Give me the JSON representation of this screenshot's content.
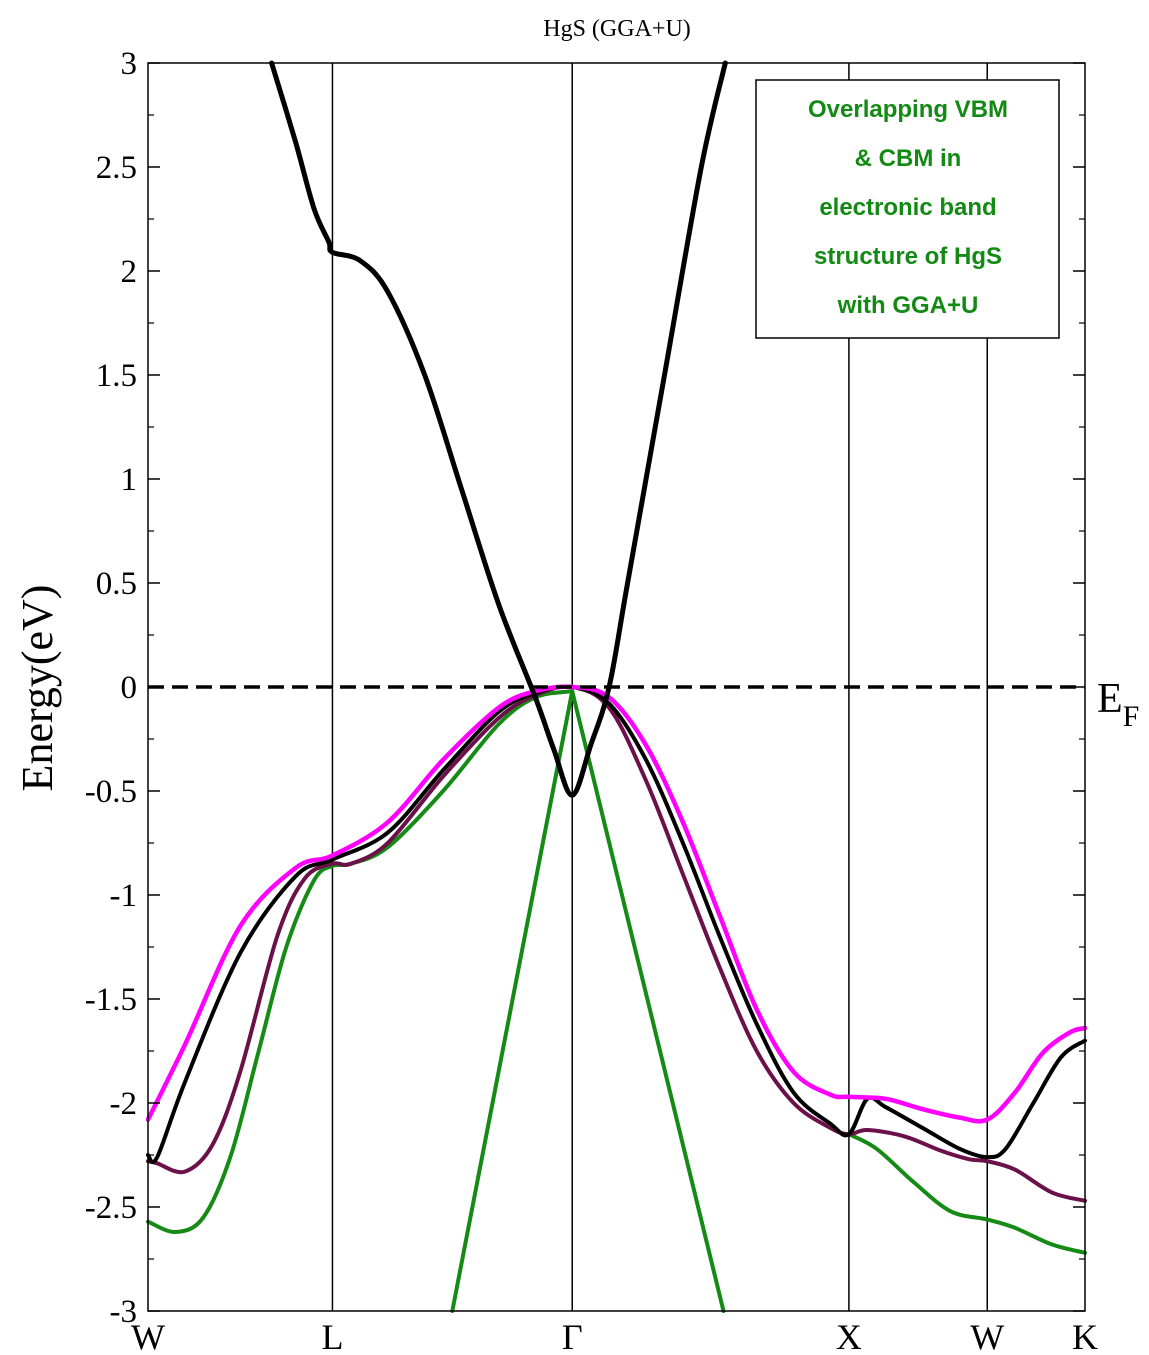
{
  "chart_data": {
    "type": "line",
    "title": "HgS (GGA+U)",
    "xlabel": "",
    "ylabel": "Energy(eV)",
    "ylim": [
      -3,
      3
    ],
    "yticks": [
      "3",
      "2.5",
      "2",
      "1.5",
      "1",
      "0.5",
      "0",
      "-0.5",
      "-1",
      "-1.5",
      "-2",
      "-2.5",
      "-3"
    ],
    "ytick_values": [
      3,
      2.5,
      2,
      1.5,
      1,
      0.5,
      0,
      -0.5,
      -1,
      -1.5,
      -2,
      -2.5,
      -3
    ],
    "kpoints": [
      {
        "label": "W",
        "pos": 0.0
      },
      {
        "label": "L",
        "pos": 1.0
      },
      {
        "label": "Γ",
        "pos": 2.3
      },
      {
        "label": "X",
        "pos": 3.8
      },
      {
        "label": "W",
        "pos": 4.55
      },
      {
        "label": "K",
        "pos": 5.08
      }
    ],
    "fermi_level": {
      "value": 0,
      "label": "E",
      "sub": "F",
      "style": "dashed"
    },
    "annotation": [
      "Overlapping VBM",
      "& CBM in",
      "electronic band",
      "structure of HgS",
      "with GGA+U"
    ],
    "grid": false,
    "series": [
      {
        "color": "#000000",
        "width": 5,
        "points": [
          [
            0.67,
            3.0
          ],
          [
            0.8,
            2.62
          ],
          [
            0.9,
            2.3
          ],
          [
            0.98,
            2.14
          ],
          [
            1.0,
            2.09
          ],
          [
            1.15,
            2.05
          ],
          [
            1.3,
            1.9
          ],
          [
            1.5,
            1.5
          ],
          [
            1.7,
            0.95
          ],
          [
            1.9,
            0.4
          ],
          [
            2.1,
            -0.05
          ],
          [
            2.2,
            -0.3
          ],
          [
            2.3,
            -0.52
          ],
          [
            2.4,
            -0.28
          ],
          [
            2.5,
            0.0
          ],
          [
            2.6,
            0.5
          ],
          [
            2.8,
            1.5
          ],
          [
            3.0,
            2.5
          ],
          [
            3.13,
            3.0
          ]
        ]
      },
      {
        "color": "#ff00ff",
        "width": 4.5,
        "points": [
          [
            0.0,
            -2.08
          ],
          [
            0.2,
            -1.72
          ],
          [
            0.5,
            -1.15
          ],
          [
            0.8,
            -0.87
          ],
          [
            1.0,
            -0.81
          ],
          [
            1.3,
            -0.65
          ],
          [
            1.6,
            -0.35
          ],
          [
            1.9,
            -0.1
          ],
          [
            2.1,
            -0.02
          ],
          [
            2.3,
            0.0
          ],
          [
            2.5,
            -0.05
          ],
          [
            2.7,
            -0.28
          ],
          [
            2.9,
            -0.65
          ],
          [
            3.1,
            -1.1
          ],
          [
            3.3,
            -1.55
          ],
          [
            3.5,
            -1.85
          ],
          [
            3.7,
            -1.96
          ],
          [
            3.8,
            -1.97
          ],
          [
            4.0,
            -1.98
          ],
          [
            4.2,
            -2.03
          ],
          [
            4.4,
            -2.07
          ],
          [
            4.55,
            -2.08
          ],
          [
            4.7,
            -1.95
          ],
          [
            4.85,
            -1.76
          ],
          [
            5.0,
            -1.66
          ],
          [
            5.08,
            -1.64
          ]
        ]
      },
      {
        "color": "#000000",
        "width": 4,
        "points": [
          [
            0.0,
            -2.25
          ],
          [
            0.05,
            -2.26
          ],
          [
            0.2,
            -1.9
          ],
          [
            0.5,
            -1.28
          ],
          [
            0.8,
            -0.91
          ],
          [
            1.0,
            -0.83
          ],
          [
            1.3,
            -0.7
          ],
          [
            1.6,
            -0.4
          ],
          [
            1.9,
            -0.12
          ],
          [
            2.1,
            -0.03
          ],
          [
            2.3,
            0.0
          ],
          [
            2.5,
            -0.08
          ],
          [
            2.7,
            -0.35
          ],
          [
            2.9,
            -0.75
          ],
          [
            3.1,
            -1.2
          ],
          [
            3.3,
            -1.62
          ],
          [
            3.5,
            -1.95
          ],
          [
            3.7,
            -2.1
          ],
          [
            3.8,
            -2.15
          ],
          [
            3.9,
            -1.98
          ],
          [
            4.0,
            -2.02
          ],
          [
            4.2,
            -2.12
          ],
          [
            4.4,
            -2.22
          ],
          [
            4.55,
            -2.26
          ],
          [
            4.65,
            -2.22
          ],
          [
            4.8,
            -2.0
          ],
          [
            4.95,
            -1.78
          ],
          [
            5.08,
            -1.7
          ]
        ]
      },
      {
        "color": "#6b1048",
        "width": 4,
        "points": [
          [
            0.0,
            -2.28
          ],
          [
            0.05,
            -2.29
          ],
          [
            0.2,
            -2.33
          ],
          [
            0.35,
            -2.2
          ],
          [
            0.5,
            -1.85
          ],
          [
            0.7,
            -1.2
          ],
          [
            0.85,
            -0.92
          ],
          [
            1.0,
            -0.85
          ],
          [
            1.1,
            -0.85
          ],
          [
            1.3,
            -0.75
          ],
          [
            1.6,
            -0.43
          ],
          [
            1.9,
            -0.15
          ],
          [
            2.1,
            -0.04
          ],
          [
            2.3,
            0.0
          ],
          [
            2.5,
            -0.1
          ],
          [
            2.7,
            -0.45
          ],
          [
            2.9,
            -0.9
          ],
          [
            3.1,
            -1.35
          ],
          [
            3.3,
            -1.75
          ],
          [
            3.5,
            -2.0
          ],
          [
            3.7,
            -2.12
          ],
          [
            3.8,
            -2.15
          ],
          [
            3.9,
            -2.13
          ],
          [
            4.1,
            -2.16
          ],
          [
            4.3,
            -2.23
          ],
          [
            4.45,
            -2.27
          ],
          [
            4.55,
            -2.28
          ],
          [
            4.7,
            -2.32
          ],
          [
            4.9,
            -2.43
          ],
          [
            5.08,
            -2.47
          ]
        ]
      },
      {
        "color": "#158a15",
        "width": 4,
        "points": [
          [
            0.0,
            -2.57
          ],
          [
            0.15,
            -2.62
          ],
          [
            0.3,
            -2.55
          ],
          [
            0.45,
            -2.25
          ],
          [
            0.6,
            -1.75
          ],
          [
            0.75,
            -1.25
          ],
          [
            0.9,
            -0.93
          ],
          [
            1.0,
            -0.86
          ],
          [
            1.1,
            -0.85
          ],
          [
            1.3,
            -0.77
          ],
          [
            1.6,
            -0.5
          ],
          [
            1.9,
            -0.18
          ],
          [
            2.1,
            -0.05
          ],
          [
            2.3,
            -0.02
          ]
        ]
      },
      {
        "color": "#158a15",
        "width": 4,
        "points": [
          [
            3.8,
            -2.15
          ],
          [
            3.95,
            -2.22
          ],
          [
            4.15,
            -2.38
          ],
          [
            4.35,
            -2.52
          ],
          [
            4.55,
            -2.56
          ],
          [
            4.7,
            -2.6
          ],
          [
            4.9,
            -2.68
          ],
          [
            5.08,
            -2.72
          ]
        ]
      },
      {
        "color": "#158a15",
        "width": 4,
        "points": [
          [
            1.65,
            -3.0
          ],
          [
            2.3,
            -0.02
          ],
          [
            3.12,
            -3.0
          ]
        ]
      }
    ]
  }
}
